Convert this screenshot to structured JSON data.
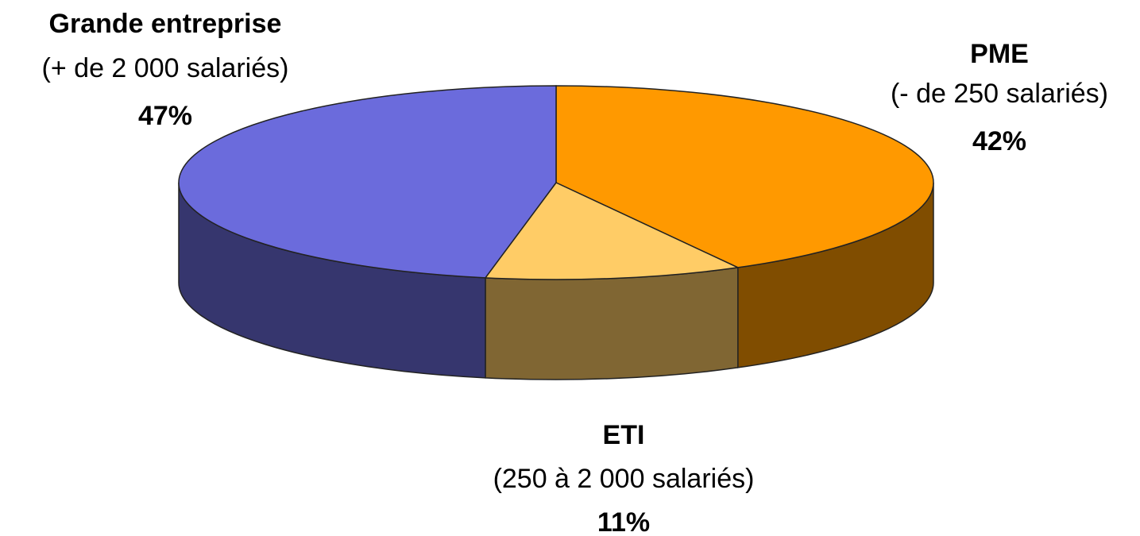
{
  "chart_data": {
    "type": "pie3d",
    "categories": [
      "Grande entreprise",
      "PME",
      "ETI"
    ],
    "sublabels": [
      "(+ de 2 000 salariés)",
      "(- de 250 salariés)",
      "(250  à 2 000 salariés)"
    ],
    "values": [
      47,
      42,
      11
    ],
    "value_labels": [
      "47%",
      "42%",
      "11%"
    ],
    "colors": [
      "#6b6bdc",
      "#ff9900",
      "#ffcc66"
    ]
  }
}
